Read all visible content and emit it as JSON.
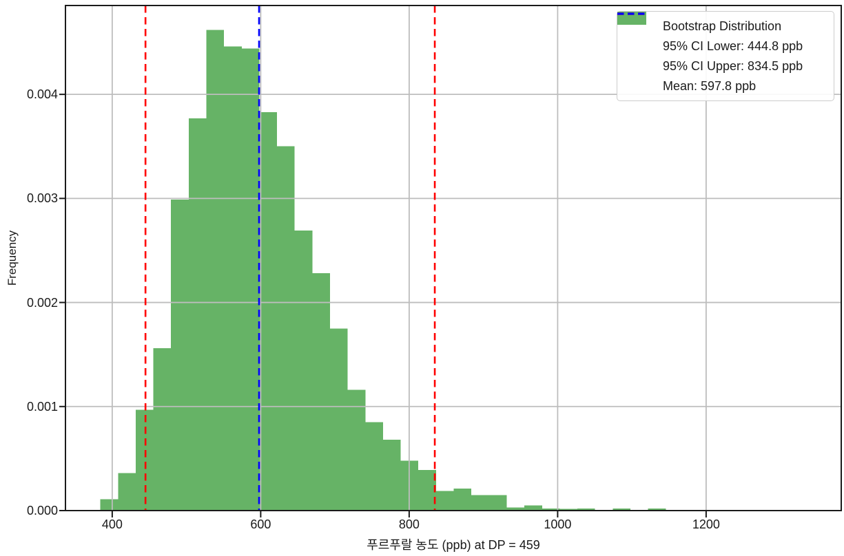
{
  "figure": {
    "background": "#ffffff"
  },
  "chart_data": {
    "type": "bar",
    "subtype": "histogram",
    "title": "",
    "xlabel": "푸르푸랄 농도 (ppb) at DP = 459",
    "ylabel": "Frequency",
    "xlim": [
      337,
      1382
    ],
    "ylim": [
      0,
      0.004854
    ],
    "xticks": [
      400,
      600,
      800,
      1000,
      1200
    ],
    "yticks": [
      {
        "value": 0.0,
        "label": "0.000"
      },
      {
        "value": 0.001,
        "label": "0.001"
      },
      {
        "value": 0.002,
        "label": "0.002"
      },
      {
        "value": 0.003,
        "label": "0.003"
      },
      {
        "value": 0.004,
        "label": "0.004"
      }
    ],
    "grid": true,
    "bins": {
      "start": 384,
      "width": 23.8
    },
    "frequencies": [
      0.00011,
      0.00036,
      0.00097,
      0.00156,
      0.00299,
      0.00377,
      0.00462,
      0.00446,
      0.00444,
      0.00383,
      0.0035,
      0.00269,
      0.00228,
      0.00175,
      0.00116,
      0.00085,
      0.00068,
      0.00048,
      0.00039,
      0.00019,
      0.00021,
      0.00015,
      0.00015,
      3e-05,
      5e-05,
      2e-05,
      1.5e-05,
      2e-05,
      0,
      2e-05,
      0,
      2e-05
    ],
    "bar_color": "#66B366",
    "vlines": [
      {
        "name": "ci-lower",
        "value": 444.8,
        "color": "#FF0000",
        "style": "dashed"
      },
      {
        "name": "ci-upper",
        "value": 834.5,
        "color": "#FF0000",
        "style": "dashed"
      },
      {
        "name": "mean",
        "value": 597.8,
        "color": "#0000FF",
        "style": "dashed"
      }
    ],
    "legend": {
      "position": "upper right",
      "items": [
        {
          "label": "Bootstrap Distribution",
          "swatch": "patch",
          "color": "#66B366"
        },
        {
          "label": "95% CI Lower: 444.8 ppb",
          "swatch": "dashed-line",
          "color": "#FF0000"
        },
        {
          "label": "95% CI Upper: 834.5 ppb",
          "swatch": "dashed-line",
          "color": "#FF0000"
        },
        {
          "label": "Mean: 597.8 ppb",
          "swatch": "dashed-line",
          "color": "#0000FF"
        }
      ]
    }
  },
  "styles": {
    "grid_color": "#BDBDBD",
    "spine_color": "#1A1A1A",
    "tick_color": "#1A1A1A",
    "text_color": "#1A1A1A",
    "legend_border_color": "#CCCCCC"
  }
}
